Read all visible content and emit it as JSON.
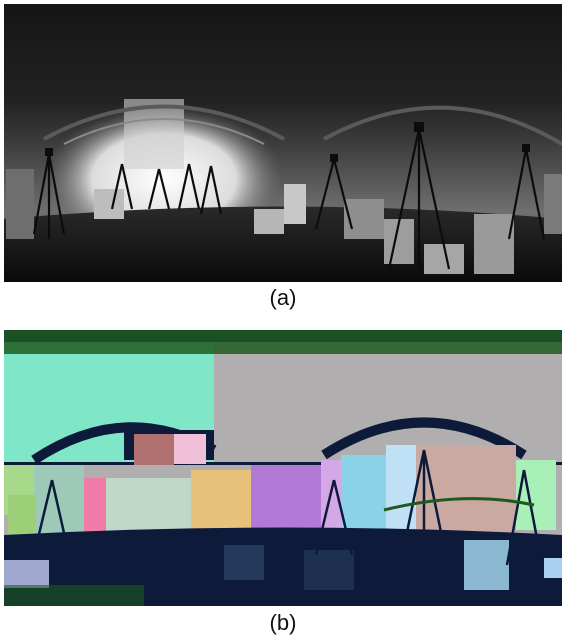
{
  "figure": {
    "panels": [
      {
        "id": "a",
        "caption": "(a)",
        "kind": "grayscale-depth-panorama"
      },
      {
        "id": "b",
        "caption": "(b)",
        "kind": "color-segmentation-panorama"
      }
    ],
    "colors": {
      "panel_a_bg_top": "#141414",
      "panel_a_bg_mid": "#5a5a5a",
      "panel_a_bright": "#f2f2f2",
      "panel_b_teal": "#7fe6c8",
      "panel_b_gray": "#b0aeae",
      "panel_b_dark": "#0d1a3a",
      "panel_b_green_noise": "#1e5a1e",
      "panel_b_pink": "#f07aa8",
      "panel_b_purple": "#b27ad6",
      "panel_b_lightblue": "#bfe0f5",
      "panel_b_orange": "#e8c27a",
      "panel_b_mauve": "#c9a9a1",
      "panel_b_cyanblue": "#8ad3e6",
      "panel_b_lime": "#a8d88a"
    }
  }
}
